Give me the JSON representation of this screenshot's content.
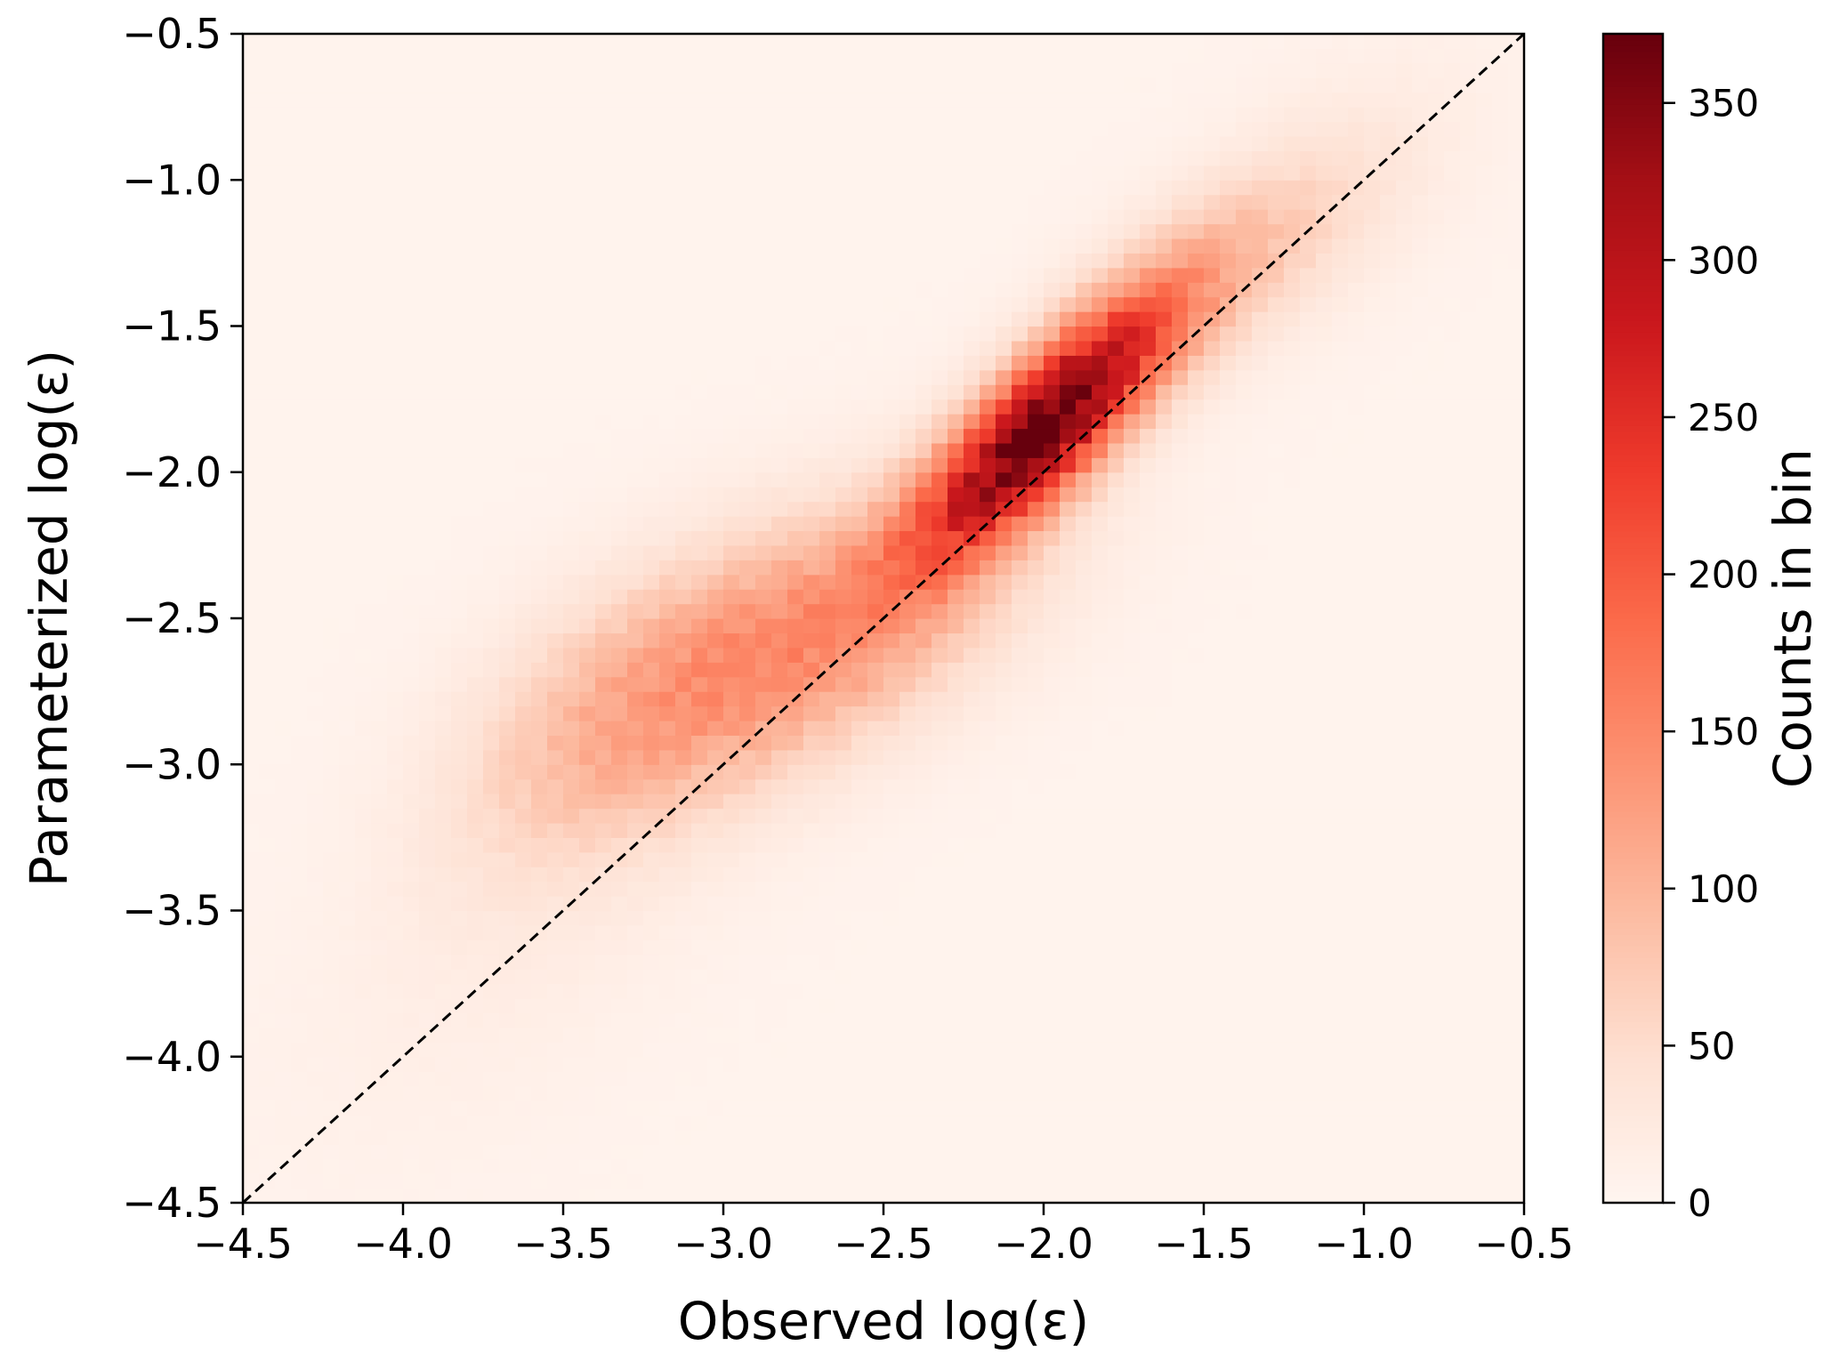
{
  "chart_data": {
    "type": "heatmap",
    "title": "",
    "xlabel": "Observed log(ε)",
    "ylabel": "Parameterized log(ε)",
    "xlim": [
      -4.5,
      -0.5
    ],
    "ylim": [
      -4.5,
      -0.5
    ],
    "x_ticks": [
      "−4.5",
      "−4.0",
      "−3.5",
      "−3.0",
      "−2.5",
      "−2.0",
      "−1.5",
      "−1.0",
      "−0.5"
    ],
    "y_ticks": [
      "−4.5",
      "−4.0",
      "−3.5",
      "−3.0",
      "−2.5",
      "−2.0",
      "−1.5",
      "−1.0",
      "−0.5"
    ],
    "reference_line": {
      "style": "dashed",
      "color": "#000000",
      "from": [
        -4.5,
        -4.5
      ],
      "to": [
        -0.5,
        -0.5
      ]
    },
    "colorbar": {
      "label": "Counts in bin",
      "colormap": "Reds",
      "min": 0,
      "max": 372,
      "ticks": [
        "0",
        "50",
        "100",
        "150",
        "200",
        "250",
        "300",
        "350"
      ]
    },
    "density": {
      "bins": 80,
      "peak": {
        "x": -2.02,
        "y": -1.82,
        "count": 372
      },
      "background_count": 4,
      "components": [
        {
          "x": -2.0,
          "y": -1.85,
          "sx": 0.27,
          "sy": 0.3,
          "rho": 0.8,
          "amp": 300
        },
        {
          "x": -2.7,
          "y": -2.55,
          "sx": 0.45,
          "sy": 0.35,
          "rho": 0.55,
          "amp": 110
        },
        {
          "x": -3.35,
          "y": -2.85,
          "sx": 0.35,
          "sy": 0.35,
          "rho": 0.45,
          "amp": 55
        },
        {
          "x": -1.5,
          "y": -1.35,
          "sx": 0.35,
          "sy": 0.3,
          "rho": 0.7,
          "amp": 60
        },
        {
          "x": -3.6,
          "y": -3.5,
          "sx": 0.5,
          "sy": 0.55,
          "rho": 0.6,
          "amp": 12
        },
        {
          "x": -1.1,
          "y": -1.0,
          "sx": 0.35,
          "sy": 0.35,
          "rho": 0.5,
          "amp": 12
        }
      ]
    }
  }
}
